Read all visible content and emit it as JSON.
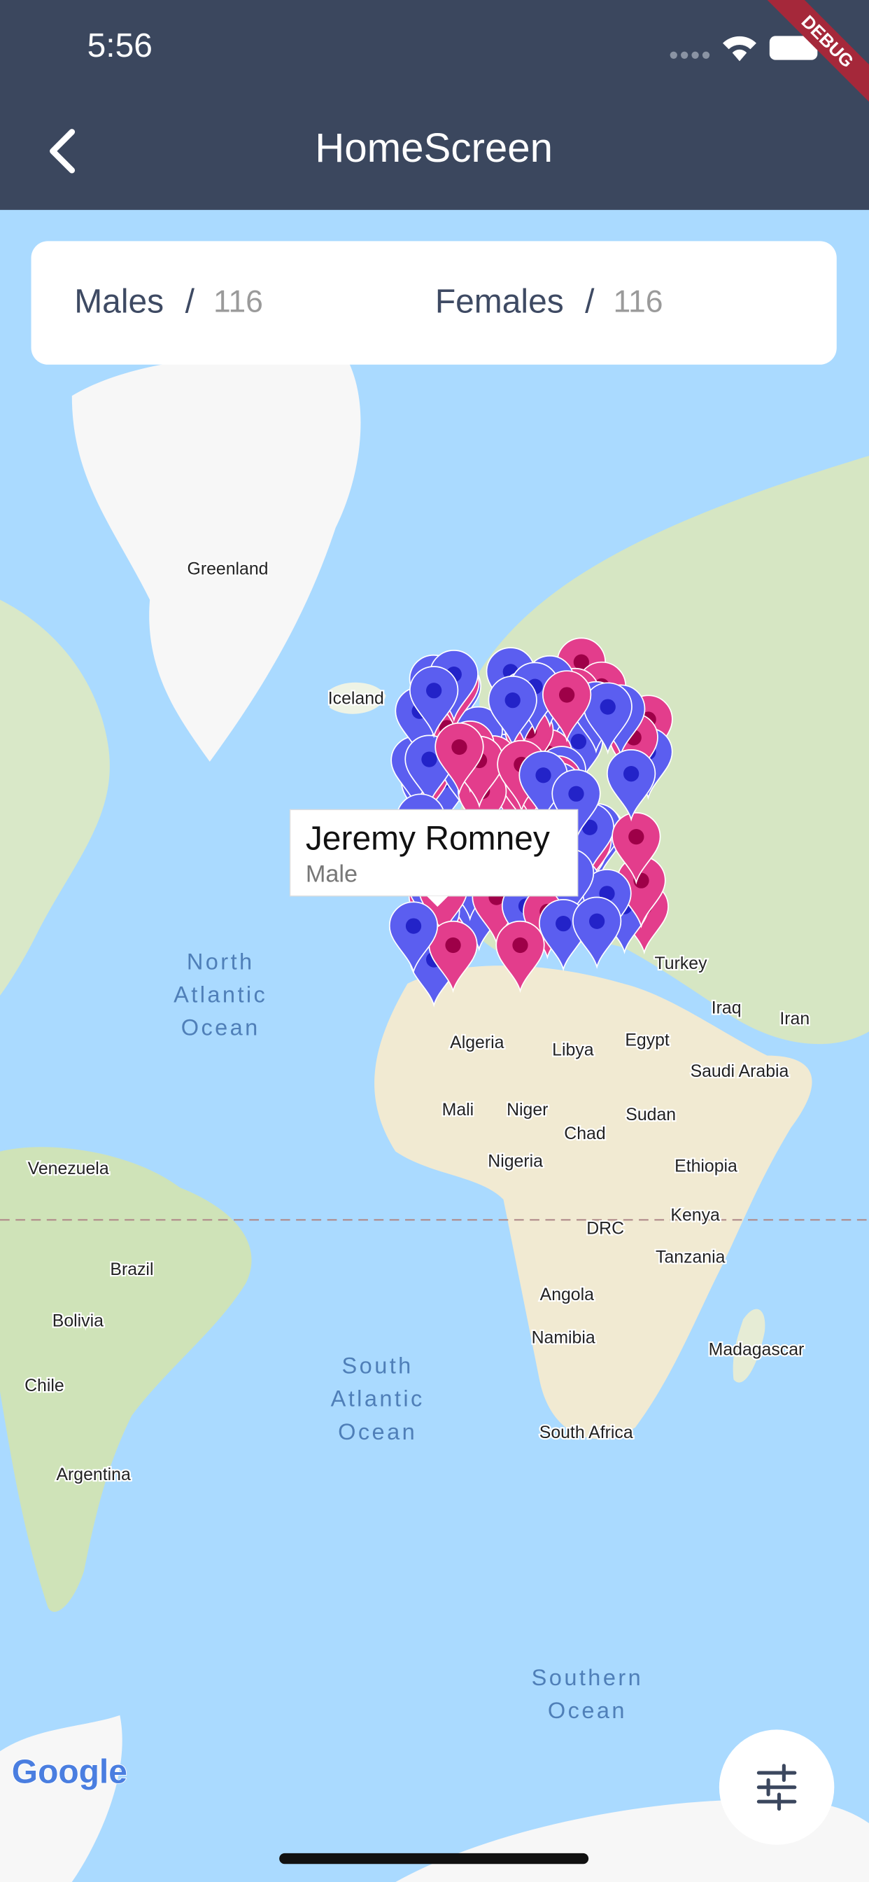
{
  "status_bar": {
    "time": "5:56"
  },
  "header": {
    "title": "HomeScreen"
  },
  "stats": {
    "males": {
      "label": "Males",
      "separator": "/",
      "count": 116
    },
    "females": {
      "label": "Females",
      "separator": "/",
      "count": 116
    }
  },
  "map": {
    "places": [
      "Greenland",
      "Iceland",
      "Turkey",
      "Iraq",
      "Iran",
      "Algeria",
      "Libya",
      "Egypt",
      "Saudi Arabia",
      "Mali",
      "Niger",
      "Chad",
      "Sudan",
      "Ethiopia",
      "Nigeria",
      "Venezuela",
      "Kenya",
      "DRC",
      "Tanzania",
      "Brazil",
      "Angola",
      "Bolivia",
      "Namibia",
      "Madagascar",
      "Chile",
      "South Africa",
      "Argentina"
    ],
    "oceans": [
      {
        "lines": [
          "North",
          "Atlantic",
          "Ocean"
        ]
      },
      {
        "lines": [
          "South",
          "Atlantic",
          "Ocean"
        ]
      },
      {
        "lines": [
          "Southern",
          "Ocean"
        ]
      }
    ],
    "info_window": {
      "name": "Jeremy Romney",
      "gender": "Male"
    },
    "logo": "Google"
  },
  "debug_banner": "DEBUG"
}
